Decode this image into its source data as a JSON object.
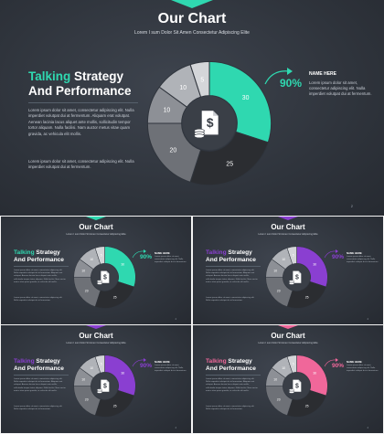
{
  "slides": [
    {
      "accent": "#2fd8b0",
      "highlight": "#2fd8b0"
    },
    {
      "accent": "#2fd8b0",
      "highlight": "#2fd8b0"
    },
    {
      "accent": "#8a3fd1",
      "highlight": "#8a3fd1"
    },
    {
      "accent": "#8a3fd1",
      "highlight": "#8a3fd1"
    },
    {
      "accent": "#f0679a",
      "highlight": "#f0679a"
    }
  ],
  "slide": {
    "title": "Our Chart",
    "subtitle": "Lorem I sum Dolor Sit Amen Consectetur Adipiscing Elite",
    "heading_highlight": "Talking",
    "heading_rest": " Strategy",
    "heading_line2": "And Performance",
    "paragraph1": "Lorem ipsum dolor sit amet, consectetur adipiscing elit. Nulla imperdiet volutpat dui at fermentum. Aliquam erat volutpat. Aenean lacinia lacus aliquet ante mollis, sollicitudin tempor tortor aliquam. Nulla facilisi. Nam auctor metus vitae quam gravida, ac vehicula elit mollis.",
    "paragraph2": "Lorem ipsum dolor sit amet, consectetur adipiscing elit. Nulla imperdiet volutpat dui at fermentum.",
    "percent": "90%",
    "name_here": "NAME HERE",
    "name_desc": "Lorem ipsum dolor sit amet, consectetur adipiscing elit. Nulla imperdiet volutpat dui at fermentum.",
    "page_number": "2",
    "icon": "dollar-coins-icon"
  },
  "chart_data": {
    "type": "pie",
    "slices": [
      {
        "value": 30,
        "label": "30",
        "color": "accent"
      },
      {
        "value": 25,
        "label": "25",
        "color": "#2b2d31"
      },
      {
        "value": 20,
        "label": "20",
        "color": "#6e7177"
      },
      {
        "value": 10,
        "label": "10",
        "color": "#8d9096"
      },
      {
        "value": 10,
        "label": "10",
        "color": "#b0b3b8"
      },
      {
        "value": 5,
        "label": "5",
        "color": "#d4d6d9"
      }
    ]
  }
}
